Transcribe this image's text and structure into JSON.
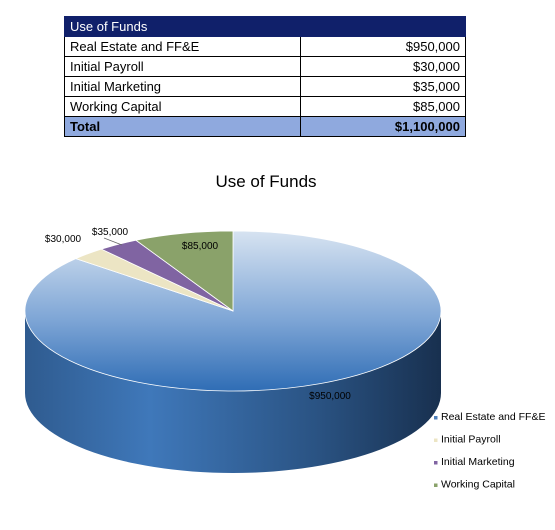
{
  "table": {
    "title": "Use of Funds",
    "rows": [
      {
        "label": "Real Estate and FF&E",
        "amount": "$950,000"
      },
      {
        "label": "Initial Payroll",
        "amount": "$30,000"
      },
      {
        "label": "Initial Marketing",
        "amount": "$35,000"
      },
      {
        "label": "Working Capital",
        "amount": "$85,000"
      }
    ],
    "total": {
      "label": "Total",
      "amount": "$1,100,000"
    }
  },
  "chart_data": {
    "type": "pie",
    "title": "Use of Funds",
    "categories": [
      "Real Estate and FF&E",
      "Initial Payroll",
      "Initial Marketing",
      "Working Capital"
    ],
    "values": [
      950000,
      30000,
      35000,
      85000
    ],
    "data_labels": [
      "$950,000",
      "$30,000",
      "$35,000",
      "$85,000"
    ],
    "colors": [
      "#4f81bd",
      "#ece5c4",
      "#8064a2",
      "#8aa26a"
    ],
    "legend_position": "bottom-right",
    "style": "3d"
  }
}
